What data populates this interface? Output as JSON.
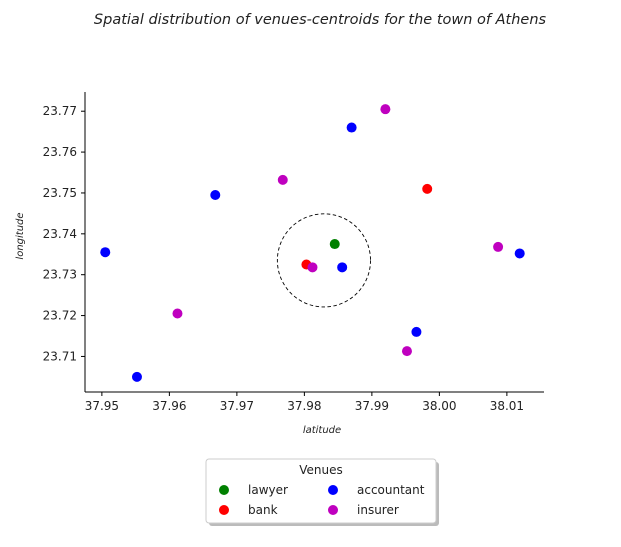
{
  "chart_data": {
    "type": "scatter",
    "title": "Spatial distribution of venues-centroids for the town of Athens",
    "xlabel": "latitude",
    "ylabel": "longitude",
    "x_ticks": [
      37.95,
      37.96,
      37.97,
      37.98,
      37.99,
      38.0,
      38.01
    ],
    "y_ticks": [
      23.71,
      23.72,
      23.73,
      23.74,
      23.75,
      23.76,
      23.77
    ],
    "x_tick_labels": [
      "37.95",
      "37.96",
      "37.97",
      "37.98",
      "37.99",
      "38.00",
      "38.01"
    ],
    "y_tick_labels": [
      "23.71",
      "23.72",
      "23.73",
      "23.74",
      "23.75",
      "23.76",
      "23.77"
    ],
    "xlim": [
      37.9475,
      38.0155
    ],
    "ylim": [
      23.7013,
      23.7747
    ],
    "grid": false,
    "legend": {
      "title": "Venues",
      "placement": "below",
      "columns": 2,
      "order": [
        "lawyer",
        "accountant",
        "bank",
        "insurer"
      ]
    },
    "series": [
      {
        "name": "lawyer",
        "color": "#008000",
        "points": [
          [
            37.9845,
            23.7375
          ]
        ]
      },
      {
        "name": "bank",
        "color": "#ff0000",
        "points": [
          [
            37.9803,
            23.7325
          ],
          [
            37.9982,
            23.751
          ]
        ]
      },
      {
        "name": "accountant",
        "color": "#0000ff",
        "points": [
          [
            37.9505,
            23.7355
          ],
          [
            37.9552,
            23.705
          ],
          [
            37.9668,
            23.7495
          ],
          [
            37.987,
            23.766
          ],
          [
            37.9856,
            23.7318
          ],
          [
            37.9966,
            23.716
          ],
          [
            38.0119,
            23.7352
          ]
        ]
      },
      {
        "name": "insurer",
        "color": "#bf00bf",
        "points": [
          [
            37.9612,
            23.7205
          ],
          [
            37.9768,
            23.7532
          ],
          [
            37.992,
            23.7705
          ],
          [
            37.9812,
            23.7318
          ],
          [
            37.9952,
            23.7113
          ],
          [
            38.0087,
            23.7368
          ]
        ]
      }
    ],
    "annotation": {
      "type": "dashed-circle",
      "center": [
        37.9829,
        23.7335
      ],
      "radius_x": 0.0069
    }
  }
}
